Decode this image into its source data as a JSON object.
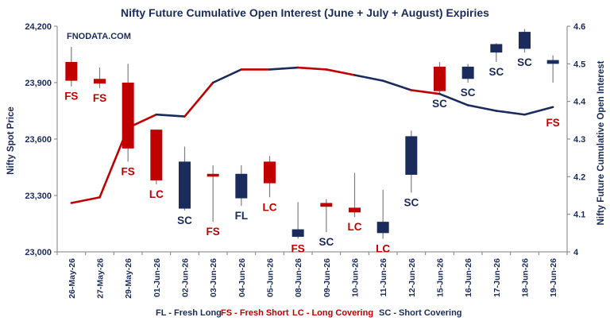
{
  "chart_data": {
    "type": "candlestick+line",
    "title": "Nifty Future Cumulative Open Interest (June + July + August) Expiries",
    "watermark": "FNODATA.COM",
    "ylabel_left": "Nifty Spot Price",
    "ylabel_right": "Nifty Future Cumulative Open Interest",
    "ylim_left": [
      23000,
      24200
    ],
    "yticks_left": [
      "23,000",
      "23,300",
      "23,600",
      "23,900",
      "24,200"
    ],
    "ylim_right": [
      4,
      4.6
    ],
    "yticks_right": [
      "4",
      "4.1",
      "4.2",
      "4.3",
      "4.4",
      "4.5",
      "4.6"
    ],
    "grid": false,
    "categories": [
      "26-May-26",
      "27-May-26",
      "29-May-26",
      "01-Jun-26",
      "02-Jun-26",
      "03-Jun-26",
      "04-Jun-26",
      "05-Jun-26",
      "08-Jun-26",
      "09-Jun-26",
      "10-Jun-26",
      "11-Jun-26",
      "12-Jun-26",
      "15-Jun-26",
      "16-Jun-26",
      "17-Jun-26",
      "18-Jun-26",
      "19-Jun-26"
    ],
    "candles": [
      {
        "open": 24010,
        "close": 23910,
        "high": 24090,
        "low": 23880
      },
      {
        "open": 23920,
        "close": 23895,
        "high": 23980,
        "low": 23870
      },
      {
        "open": 23900,
        "close": 23550,
        "high": 24000,
        "low": 23480
      },
      {
        "open": 23650,
        "close": 23380,
        "high": 23650,
        "low": 23360
      },
      {
        "open": 23230,
        "close": 23480,
        "high": 23560,
        "low": 23220
      },
      {
        "open": 23415,
        "close": 23400,
        "high": 23460,
        "low": 23160
      },
      {
        "open": 23285,
        "close": 23415,
        "high": 23460,
        "low": 23245
      },
      {
        "open": 23480,
        "close": 23365,
        "high": 23510,
        "low": 23290
      },
      {
        "open": 23080,
        "close": 23120,
        "high": 23265,
        "low": 23070
      },
      {
        "open": 23260,
        "close": 23240,
        "high": 23280,
        "low": 23105
      },
      {
        "open": 23235,
        "close": 23210,
        "high": 23420,
        "low": 23185
      },
      {
        "open": 23100,
        "close": 23160,
        "high": 23330,
        "low": 23070
      },
      {
        "open": 23410,
        "close": 23615,
        "high": 23645,
        "low": 23315
      },
      {
        "open": 23985,
        "close": 23855,
        "high": 24010,
        "low": 23840
      },
      {
        "open": 23920,
        "close": 23985,
        "high": 24000,
        "low": 23900
      },
      {
        "open": 24060,
        "close": 24105,
        "high": 24110,
        "low": 24010
      },
      {
        "open": 24080,
        "close": 24170,
        "high": 24185,
        "low": 24060
      },
      {
        "open": 24000,
        "close": 24020,
        "high": 24045,
        "low": 23900
      }
    ],
    "open_interest": [
      4.13,
      4.145,
      4.33,
      4.365,
      4.36,
      4.45,
      4.485,
      4.485,
      4.49,
      4.485,
      4.47,
      4.455,
      4.43,
      4.42,
      4.39,
      4.375,
      4.365,
      4.385
    ],
    "annotations": [
      "FS",
      "FS",
      "FS",
      "LC",
      "SC",
      "FS",
      "FL",
      "LC",
      "FS",
      "SC",
      "LC",
      "LC",
      "SC",
      "SC",
      "SC",
      "SC",
      "SC",
      "FS"
    ],
    "legend": [
      {
        "code": "FL",
        "text": "FL - Fresh Long"
      },
      {
        "code": "FS",
        "text": "FS - Fresh Short"
      },
      {
        "code": "LC",
        "text": "LC - Long Covering"
      },
      {
        "code": "SC",
        "text": "SC - Short Covering"
      }
    ],
    "colors": {
      "red": "#c00000",
      "navy": "#1a2b5c",
      "axis": "#7f7f7f"
    }
  }
}
